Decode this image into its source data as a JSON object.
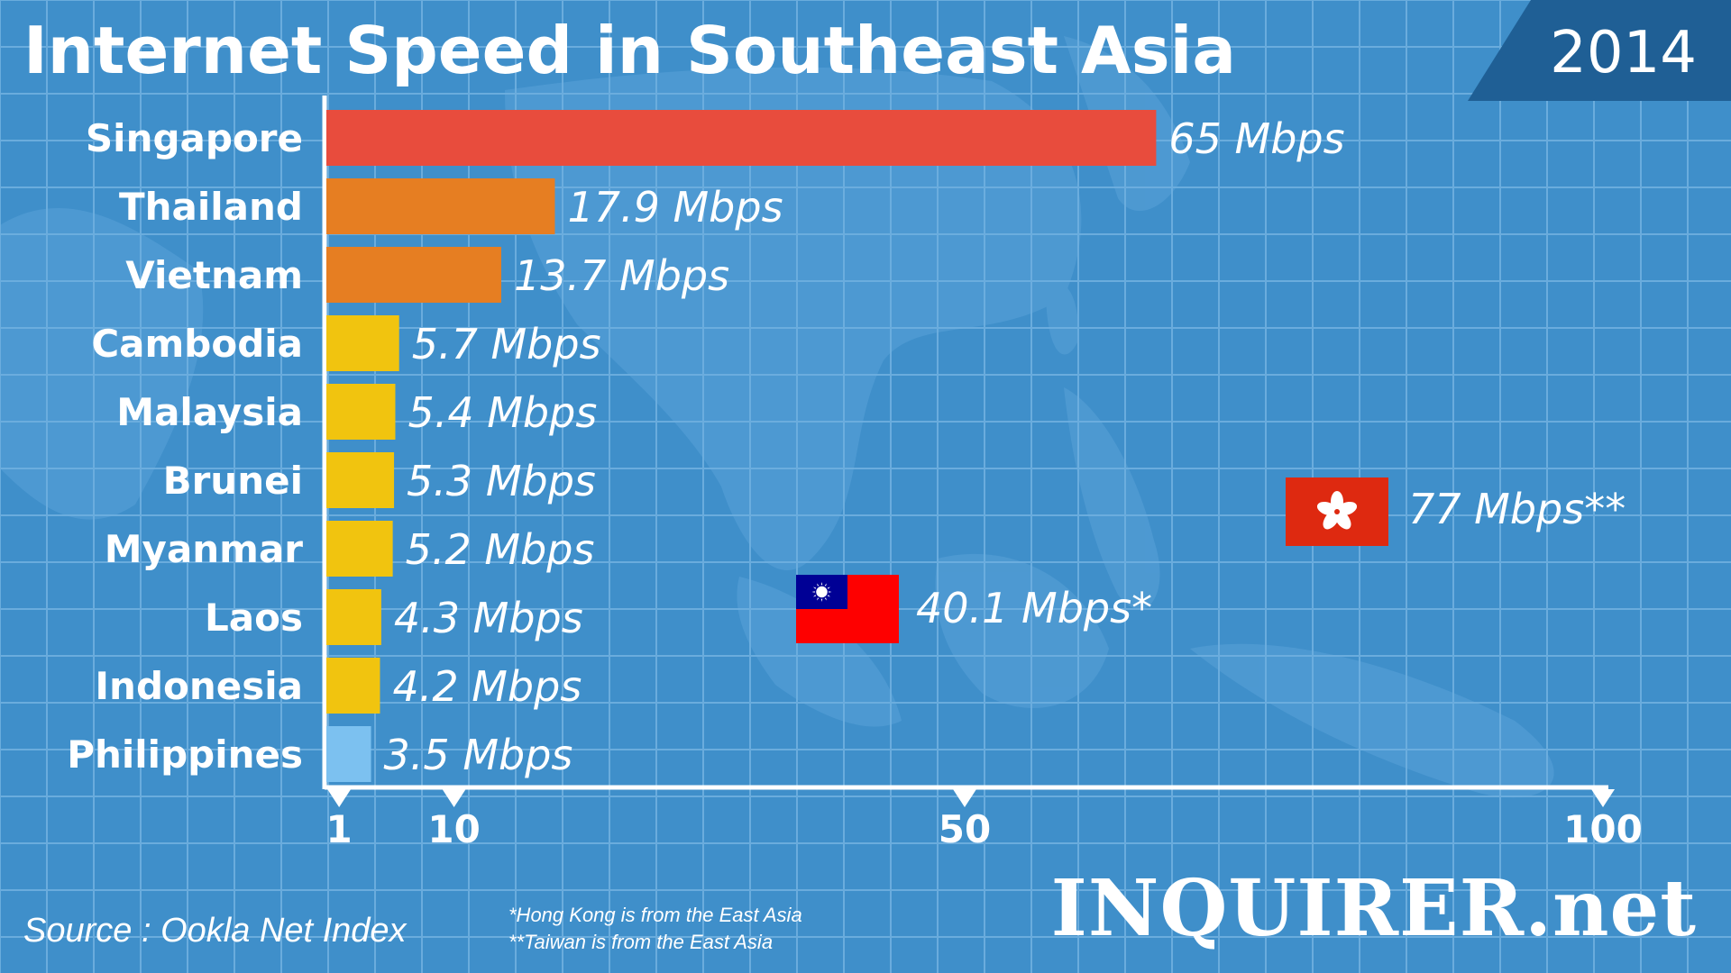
{
  "title": "Internet Speed in Southeast Asia",
  "year": "2014",
  "source": "Source : Ookla Net Index",
  "footnotes": [
    "*Hong Kong is from the East Asia",
    "**Taiwan is from the East Asia"
  ],
  "brand": "INQUIRER.net",
  "colors": {
    "background": "#3f8fca",
    "grid": "#6fb0e0",
    "red": "#e84c3d",
    "orange": "#e67e22",
    "yellow": "#f1c40f",
    "lightblue": "#7cc1f0",
    "axis": "#ffffff",
    "banner": "#1f5f95"
  },
  "chart_data": {
    "type": "bar",
    "orientation": "horizontal",
    "categories": [
      "Singapore",
      "Thailand",
      "Vietnam",
      "Cambodia",
      "Malaysia",
      "Brunei",
      "Myanmar",
      "Laos",
      "Indonesia",
      "Philippines"
    ],
    "values": [
      65,
      17.9,
      13.7,
      5.7,
      5.4,
      5.3,
      5.2,
      4.3,
      4.2,
      3.5
    ],
    "value_labels": [
      "65 Mbps",
      "17.9 Mbps",
      "13.7 Mbps",
      "5.7 Mbps",
      "5.4 Mbps",
      "5.3 Mbps",
      "5.2 Mbps",
      "4.3 Mbps",
      "4.2 Mbps",
      "3.5 Mbps"
    ],
    "bar_colors": [
      "red",
      "orange",
      "orange",
      "yellow",
      "yellow",
      "yellow",
      "yellow",
      "yellow",
      "yellow",
      "lightblue"
    ],
    "x_ticks": [
      1,
      10,
      50,
      100
    ],
    "xlim": [
      0,
      100
    ],
    "annotations": [
      {
        "flag": "hong-kong",
        "value": 77,
        "label": "77 Mbps**"
      },
      {
        "flag": "taiwan",
        "value": 40.1,
        "label": "40.1 Mbps*"
      }
    ]
  }
}
